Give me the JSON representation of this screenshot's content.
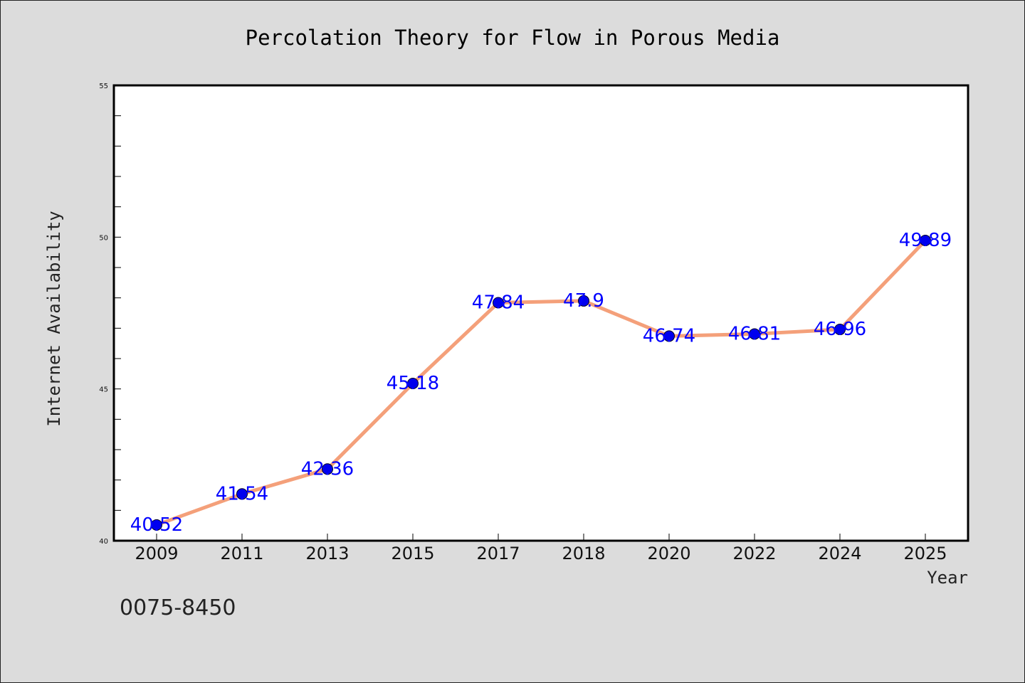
{
  "chart_data": {
    "type": "line",
    "title": "Percolation Theory for Flow in Porous Media",
    "xlabel": "Year",
    "ylabel": "Internet Availability",
    "categories": [
      "2009",
      "2011",
      "2013",
      "2015",
      "2017",
      "2018",
      "2020",
      "2022",
      "2024",
      "2025"
    ],
    "values": [
      40.52,
      41.54,
      42.36,
      45.18,
      47.84,
      47.9,
      46.74,
      46.81,
      46.96,
      49.89
    ],
    "data_labels": [
      "40.52",
      "41.54",
      "42.36",
      "45.18",
      "47.84",
      "47.9",
      "46.74",
      "46.81",
      "46.96",
      "49.89"
    ],
    "ylim": [
      40,
      55
    ],
    "yticks": [
      "40",
      "45",
      "50",
      "55"
    ],
    "grid": false,
    "line_color": "#f4a07a",
    "marker_color": "#0000ee",
    "label_color": "#0000ff"
  },
  "footer_text": "0075-8450"
}
